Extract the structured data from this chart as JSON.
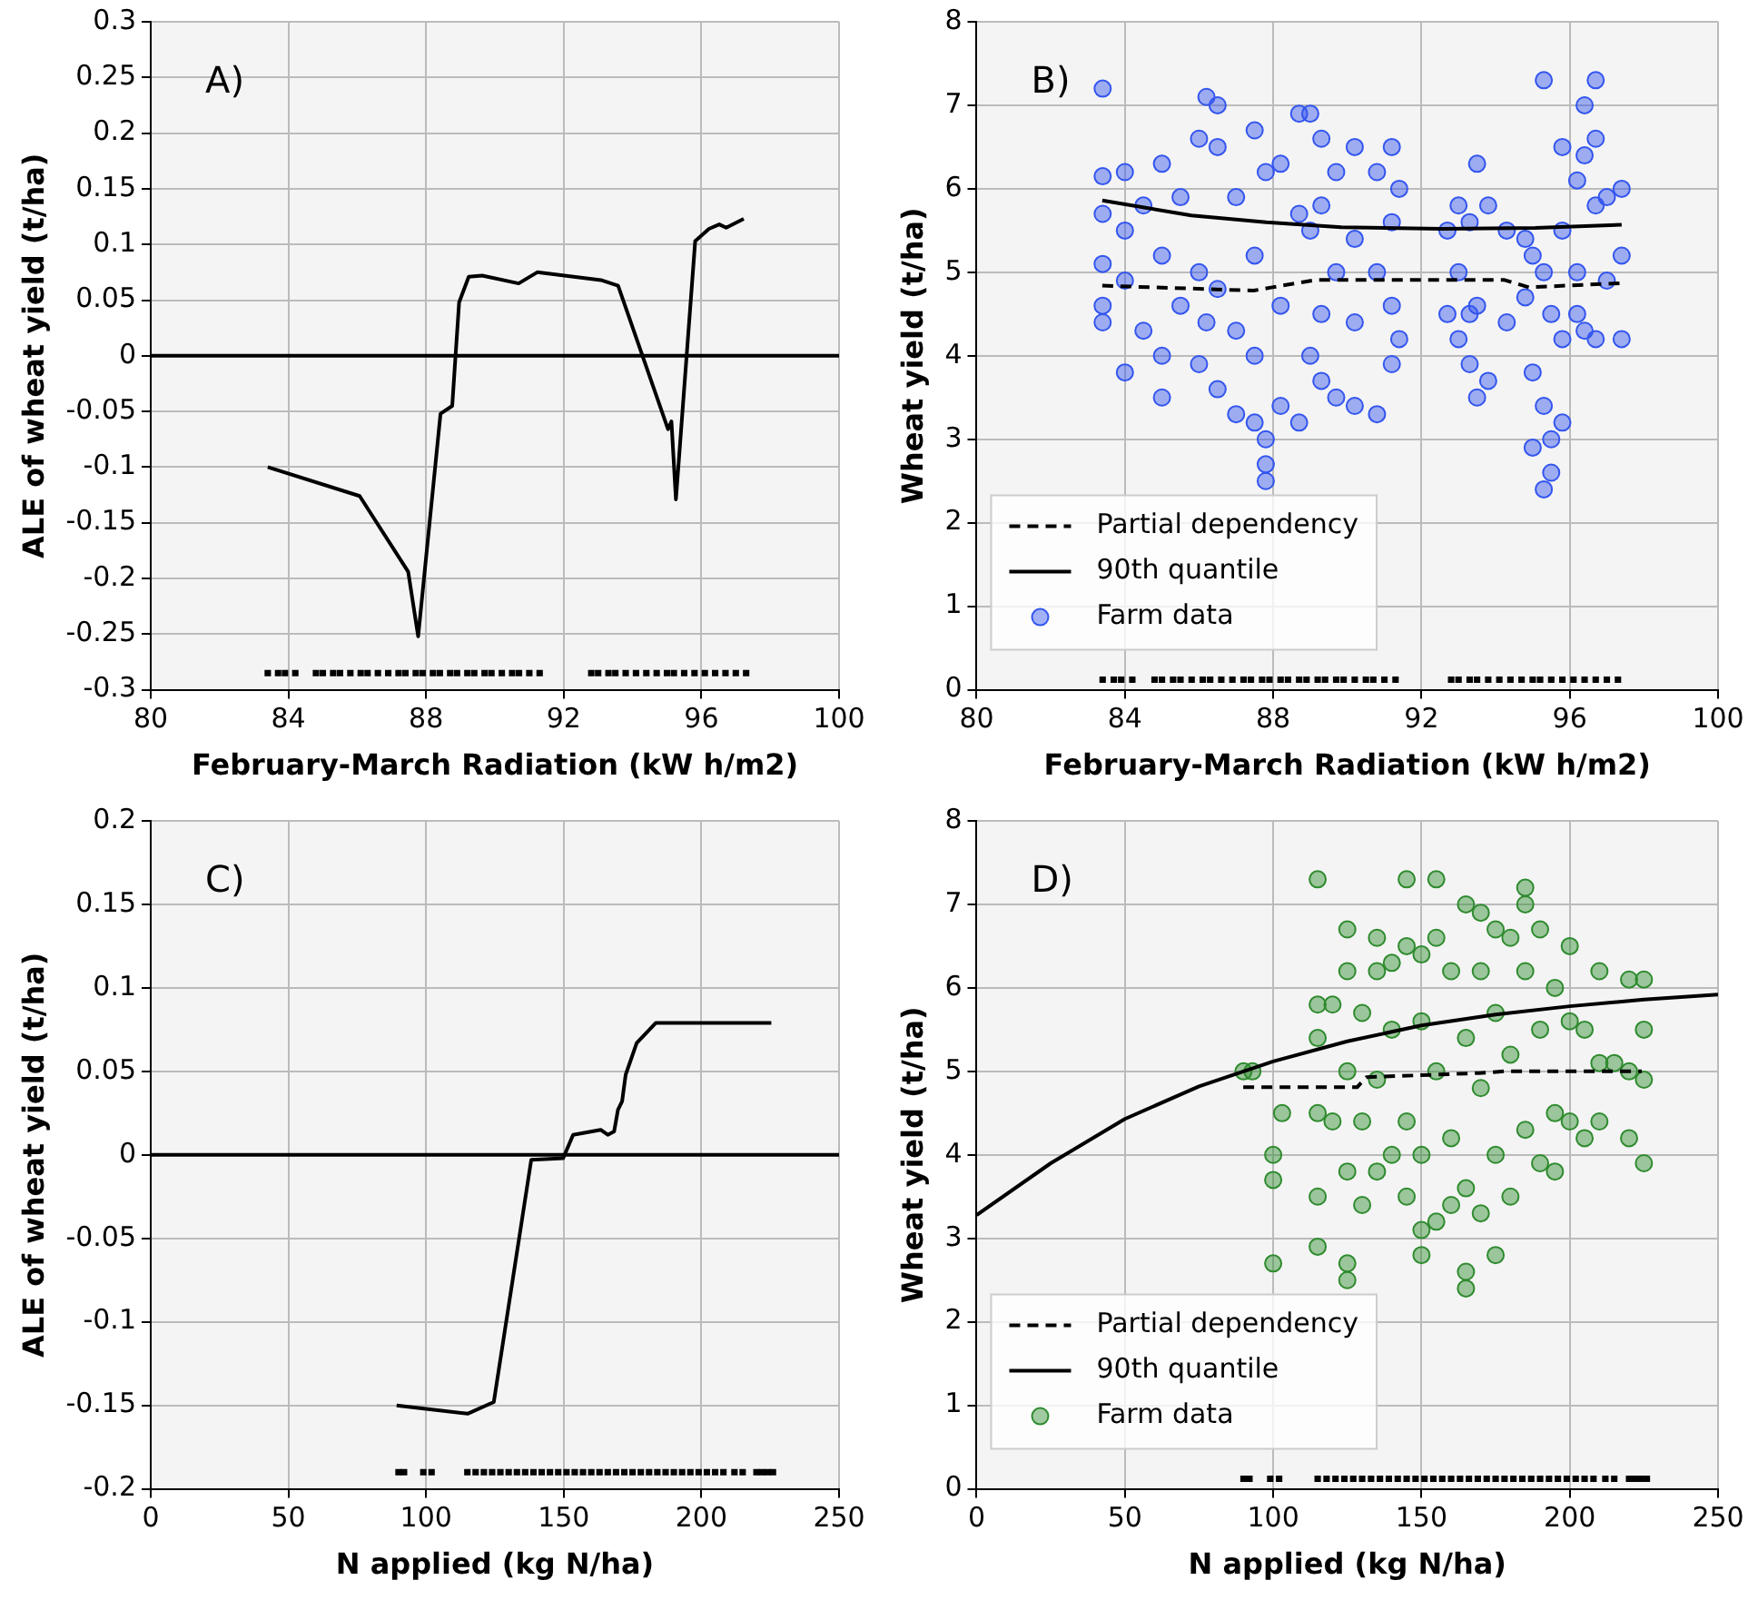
{
  "chart_data": [
    {
      "type": "line",
      "xlabel": "February-March Radiation (kW h/m2)",
      "ylabel": "ALE of wheat yield (t/ha)",
      "annotations": [
        "A)"
      ],
      "xlim": [
        80,
        100
      ],
      "xticks": [
        80,
        84,
        88,
        92,
        96,
        100
      ],
      "ylim": [
        -0.3,
        0.3
      ],
      "yticks": [
        -0.3,
        -0.25,
        -0.2,
        -0.15,
        -0.1,
        -0.05,
        0,
        0.05,
        0.1,
        0.15,
        0.2,
        0.25,
        0.3
      ],
      "grid": true,
      "legend": false,
      "ref_lines": [
        {
          "axis": "y",
          "value": 0,
          "color": "#000000"
        }
      ],
      "series": [
        {
          "color": "#000000",
          "line_style": "solid",
          "marker": "none",
          "x": [
            83.4,
            86.07,
            87.48,
            87.77,
            88.42,
            88.76,
            88.96,
            89.24,
            89.63,
            90.69,
            91.23,
            93.08,
            93.58,
            95.03,
            95.13,
            95.26,
            95.82,
            96.22,
            96.52,
            96.72,
            97.23
          ],
          "values": [
            -0.1,
            -0.126,
            -0.194,
            -0.252,
            -0.052,
            -0.045,
            0.048,
            0.071,
            0.072,
            0.065,
            0.075,
            0.068,
            0.063,
            -0.066,
            -0.059,
            -0.129,
            0.103,
            0.114,
            0.118,
            0.115,
            0.123
          ]
        },
        {
          "type": "scatter",
          "color": "#000000",
          "marker": "square",
          "x": [
            83.4,
            83.7,
            83.9,
            84.2,
            84.8,
            85.0,
            85.3,
            85.5,
            85.8,
            86.1,
            86.3,
            86.6,
            86.9,
            87.2,
            87.4,
            87.7,
            87.9,
            88.2,
            88.4,
            88.7,
            88.9,
            89.2,
            89.4,
            89.7,
            89.9,
            90.2,
            90.5,
            90.7,
            91.0,
            91.3,
            92.8,
            93.0,
            93.3,
            93.5,
            93.8,
            94.1,
            94.4,
            94.7,
            95.0,
            95.2,
            95.5,
            95.8,
            96.1,
            96.4,
            96.7,
            97.0,
            97.3
          ],
          "values": [
            -0.285,
            -0.285,
            -0.285,
            -0.285,
            -0.285,
            -0.285,
            -0.285,
            -0.285,
            -0.285,
            -0.285,
            -0.285,
            -0.285,
            -0.285,
            -0.285,
            -0.285,
            -0.285,
            -0.285,
            -0.285,
            -0.285,
            -0.285,
            -0.285,
            -0.285,
            -0.285,
            -0.285,
            -0.285,
            -0.285,
            -0.285,
            -0.285,
            -0.285,
            -0.285,
            -0.285,
            -0.285,
            -0.285,
            -0.285,
            -0.285,
            -0.285,
            -0.285,
            -0.285,
            -0.285,
            -0.285,
            -0.285,
            -0.285,
            -0.285,
            -0.285,
            -0.285,
            -0.285,
            -0.285
          ]
        }
      ]
    },
    {
      "type": "scatter",
      "xlabel": "February-March Radiation (kW h/m2)",
      "ylabel": "Wheat yield (t/ha)",
      "annotations": [
        "B)"
      ],
      "xlim": [
        80,
        100
      ],
      "xticks": [
        80,
        84,
        88,
        92,
        96,
        100
      ],
      "ylim": [
        0,
        8
      ],
      "yticks": [
        0,
        1,
        2,
        3,
        4,
        5,
        6,
        7,
        8
      ],
      "grid": true,
      "legend": "bottom left",
      "series": [
        {
          "type": "line",
          "name": "Partial dependency",
          "color": "#000000",
          "line_style": "dashed",
          "marker": "none",
          "x": [
            83.39,
            87.47,
            87.98,
            89.16,
            94.22,
            94.9,
            97.4
          ],
          "values": [
            4.84,
            4.78,
            4.82,
            4.91,
            4.91,
            4.82,
            4.87
          ]
        },
        {
          "type": "line",
          "name": "90th quantile",
          "color": "#000000",
          "line_style": "solid",
          "marker": "none",
          "x": [
            83.39,
            85.79,
            87.81,
            89.84,
            92.54,
            95.07,
            97.4
          ],
          "values": [
            5.86,
            5.68,
            5.6,
            5.54,
            5.52,
            5.53,
            5.57
          ]
        },
        {
          "name": "Farm data",
          "color": "#3355ee",
          "marker": "circle",
          "x": [
            83.4,
            83.4,
            83.4,
            83.4,
            83.4,
            83.4,
            84,
            84,
            84,
            84,
            84.5,
            84.5,
            85,
            85,
            85,
            85,
            85.5,
            85.5,
            86,
            86,
            86,
            86.2,
            86.2,
            86.5,
            86.5,
            86.5,
            86.5,
            87,
            87,
            87,
            87.5,
            87.5,
            87.5,
            87.5,
            87.8,
            87.8,
            87.8,
            87.8,
            88.2,
            88.2,
            88.2,
            88.7,
            88.7,
            88.7,
            89,
            89,
            89,
            89.3,
            89.3,
            89.3,
            89.3,
            89.7,
            89.7,
            89.7,
            90.2,
            90.2,
            90.2,
            90.2,
            90.8,
            90.8,
            90.8,
            91.2,
            91.2,
            91.2,
            91.2,
            91.4,
            91.4,
            92.7,
            92.7,
            93,
            93,
            93,
            93.3,
            93.3,
            93.3,
            93.5,
            93.5,
            93.5,
            93.8,
            93.8,
            94.3,
            94.3,
            94.8,
            94.8,
            95,
            95,
            95,
            95.3,
            95.3,
            95.3,
            95.3,
            95.5,
            95.5,
            95.5,
            95.8,
            95.8,
            95.8,
            95.8,
            96.2,
            96.2,
            96.2,
            96.4,
            96.4,
            96.4,
            96.7,
            96.7,
            96.7,
            96.7,
            97,
            97,
            97.4,
            97.4,
            97.4
          ],
          "values": [
            7.2,
            6.15,
            5.7,
            5.1,
            4.6,
            4.4,
            6.2,
            5.5,
            4.9,
            3.8,
            5.8,
            4.3,
            6.3,
            5.2,
            4.0,
            3.5,
            5.9,
            4.6,
            6.6,
            5.0,
            3.9,
            7.1,
            4.4,
            7.0,
            6.5,
            4.8,
            3.6,
            5.9,
            4.3,
            3.3,
            6.7,
            5.2,
            4.0,
            3.2,
            6.2,
            3.0,
            2.7,
            2.5,
            6.3,
            4.6,
            3.4,
            6.9,
            5.7,
            3.2,
            6.9,
            5.5,
            4.0,
            6.6,
            5.8,
            4.5,
            3.7,
            6.2,
            5.0,
            3.5,
            6.5,
            5.4,
            4.4,
            3.4,
            6.2,
            5.0,
            3.3,
            6.5,
            5.6,
            4.6,
            3.9,
            6.0,
            4.2,
            5.5,
            4.5,
            5.8,
            5.0,
            4.2,
            5.6,
            4.5,
            3.9,
            6.3,
            4.6,
            3.5,
            5.8,
            3.7,
            5.5,
            4.4,
            5.4,
            4.7,
            5.2,
            3.8,
            2.9,
            7.3,
            5.0,
            3.4,
            2.4,
            4.5,
            3.0,
            2.6,
            6.5,
            5.5,
            4.2,
            3.2,
            6.1,
            5.0,
            4.5,
            7.0,
            6.4,
            4.3,
            7.3,
            6.6,
            5.8,
            4.2,
            5.9,
            4.9,
            6.0,
            5.2,
            4.2
          ]
        },
        {
          "type": "scatter",
          "color": "#000000",
          "marker": "square",
          "x": [
            83.4,
            83.7,
            83.9,
            84.2,
            84.8,
            85.0,
            85.3,
            85.5,
            85.8,
            86.1,
            86.3,
            86.6,
            86.9,
            87.2,
            87.4,
            87.7,
            87.9,
            88.2,
            88.4,
            88.7,
            88.9,
            89.2,
            89.4,
            89.7,
            89.9,
            90.2,
            90.5,
            90.7,
            91.0,
            91.3,
            92.8,
            93.0,
            93.3,
            93.5,
            93.8,
            94.1,
            94.4,
            94.7,
            95.0,
            95.2,
            95.5,
            95.8,
            96.1,
            96.4,
            96.7,
            97.0,
            97.3
          ],
          "values": [
            0.12,
            0.12,
            0.12,
            0.12,
            0.12,
            0.12,
            0.12,
            0.12,
            0.12,
            0.12,
            0.12,
            0.12,
            0.12,
            0.12,
            0.12,
            0.12,
            0.12,
            0.12,
            0.12,
            0.12,
            0.12,
            0.12,
            0.12,
            0.12,
            0.12,
            0.12,
            0.12,
            0.12,
            0.12,
            0.12,
            0.12,
            0.12,
            0.12,
            0.12,
            0.12,
            0.12,
            0.12,
            0.12,
            0.12,
            0.12,
            0.12,
            0.12,
            0.12,
            0.12,
            0.12,
            0.12,
            0.12
          ]
        }
      ]
    },
    {
      "type": "line",
      "xlabel": "N applied (kg N/ha)",
      "ylabel": "ALE of wheat yield (t/ha)",
      "annotations": [
        "C)"
      ],
      "xlim": [
        0,
        250
      ],
      "xticks": [
        0,
        50,
        100,
        150,
        200,
        250
      ],
      "ylim": [
        -0.2,
        0.2
      ],
      "yticks": [
        -0.2,
        -0.15,
        -0.1,
        -0.05,
        0,
        0.05,
        0.1,
        0.15,
        0.2
      ],
      "grid": true,
      "legend": false,
      "ref_lines": [
        {
          "axis": "y",
          "value": 0,
          "color": "#000000"
        }
      ],
      "series": [
        {
          "color": "#000000",
          "line_style": "solid",
          "marker": "none",
          "x": [
            89.3,
            115.1,
            124.6,
            138.2,
            149.8,
            153.4,
            163.4,
            166,
            168.3,
            169.7,
            171.2,
            172.5,
            176.5,
            183.4,
            225.4
          ],
          "values": [
            -0.15,
            -0.155,
            -0.148,
            -0.003,
            -0.002,
            0.012,
            0.015,
            0.012,
            0.014,
            0.027,
            0.032,
            0.048,
            0.067,
            0.079,
            0.079
          ]
        },
        {
          "type": "scatter",
          "color": "#000000",
          "marker": "square",
          "x": [
            90,
            92,
            99,
            102,
            115,
            118,
            121,
            124,
            127,
            130,
            133,
            136,
            139,
            142,
            145,
            148,
            151,
            154,
            157,
            160,
            163,
            166,
            169,
            172,
            175,
            178,
            181,
            184,
            187,
            190,
            193,
            196,
            199,
            202,
            205,
            208,
            212,
            215,
            220,
            222,
            224,
            226
          ],
          "values": [
            -0.19,
            -0.19,
            -0.19,
            -0.19,
            -0.19,
            -0.19,
            -0.19,
            -0.19,
            -0.19,
            -0.19,
            -0.19,
            -0.19,
            -0.19,
            -0.19,
            -0.19,
            -0.19,
            -0.19,
            -0.19,
            -0.19,
            -0.19,
            -0.19,
            -0.19,
            -0.19,
            -0.19,
            -0.19,
            -0.19,
            -0.19,
            -0.19,
            -0.19,
            -0.19,
            -0.19,
            -0.19,
            -0.19,
            -0.19,
            -0.19,
            -0.19,
            -0.19,
            -0.19,
            -0.19,
            -0.19,
            -0.19,
            -0.19
          ]
        }
      ]
    },
    {
      "type": "scatter",
      "xlabel": "N applied (kg N/ha)",
      "ylabel": "Wheat yield (t/ha)",
      "annotations": [
        "D)"
      ],
      "xlim": [
        0,
        250
      ],
      "xticks": [
        0,
        50,
        100,
        150,
        200,
        250
      ],
      "ylim": [
        0,
        8
      ],
      "yticks": [
        0,
        1,
        2,
        3,
        4,
        5,
        6,
        7,
        8
      ],
      "grid": true,
      "legend": "bottom left",
      "series": [
        {
          "type": "line",
          "name": "Partial dependency",
          "color": "#000000",
          "line_style": "dashed",
          "marker": "none",
          "x": [
            89.9,
            128.3,
            131.4,
            169.4,
            177.8,
            224.3
          ],
          "values": [
            4.81,
            4.81,
            4.93,
            4.98,
            5.0,
            5.0
          ]
        },
        {
          "type": "line",
          "name": "90th quantile",
          "color": "#000000",
          "line_style": "solid",
          "marker": "none",
          "x": [
            0,
            25,
            50,
            75,
            100,
            125,
            150,
            175,
            200,
            225,
            250
          ],
          "values": [
            3.28,
            3.9,
            4.43,
            4.82,
            5.12,
            5.36,
            5.55,
            5.68,
            5.78,
            5.86,
            5.92
          ]
        },
        {
          "name": "Farm data",
          "color": "#2e8b2e",
          "marker": "circle",
          "x": [
            90,
            93,
            100,
            100,
            100,
            103,
            115,
            115,
            115,
            115,
            115,
            115,
            120,
            120,
            125,
            125,
            125,
            125,
            125,
            125,
            130,
            130,
            130,
            135,
            135,
            135,
            135,
            140,
            140,
            140,
            145,
            145,
            145,
            145,
            150,
            150,
            150,
            150,
            150,
            155,
            155,
            155,
            155,
            160,
            160,
            160,
            165,
            165,
            165,
            165,
            165,
            170,
            170,
            170,
            170,
            175,
            175,
            175,
            175,
            180,
            180,
            180,
            185,
            185,
            185,
            185,
            190,
            190,
            190,
            195,
            195,
            195,
            200,
            200,
            200,
            205,
            205,
            210,
            210,
            210,
            215,
            220,
            220,
            220,
            225,
            225,
            225,
            225
          ],
          "values": [
            5.0,
            5.0,
            4.0,
            3.7,
            2.7,
            4.5,
            7.3,
            5.8,
            5.4,
            4.5,
            3.5,
            2.9,
            5.8,
            4.4,
            6.7,
            6.2,
            5.0,
            3.8,
            2.7,
            2.5,
            5.7,
            4.4,
            3.4,
            6.6,
            6.2,
            4.9,
            3.8,
            6.3,
            5.5,
            4.0,
            7.3,
            6.5,
            4.4,
            3.5,
            6.4,
            5.6,
            4.0,
            3.1,
            2.8,
            7.3,
            6.6,
            5.0,
            3.2,
            6.2,
            4.2,
            3.4,
            7.0,
            5.4,
            3.6,
            2.6,
            2.4,
            6.9,
            6.2,
            4.8,
            3.3,
            6.7,
            5.7,
            4.0,
            2.8,
            6.6,
            5.2,
            3.5,
            7.2,
            7.0,
            6.2,
            4.3,
            6.7,
            5.5,
            3.9,
            6.0,
            4.5,
            3.8,
            6.5,
            5.6,
            4.4,
            5.5,
            4.2,
            6.2,
            5.1,
            4.4,
            5.1,
            6.1,
            5.0,
            4.2,
            6.1,
            5.5,
            4.9,
            3.9
          ]
        },
        {
          "type": "scatter",
          "color": "#000000",
          "marker": "square",
          "x": [
            90,
            92,
            99,
            102,
            115,
            118,
            121,
            124,
            127,
            130,
            133,
            136,
            139,
            142,
            145,
            148,
            151,
            154,
            157,
            160,
            163,
            166,
            169,
            172,
            175,
            178,
            181,
            184,
            187,
            190,
            193,
            196,
            199,
            202,
            205,
            208,
            212,
            215,
            220,
            222,
            224,
            226
          ],
          "values": [
            0.12,
            0.12,
            0.12,
            0.12,
            0.12,
            0.12,
            0.12,
            0.12,
            0.12,
            0.12,
            0.12,
            0.12,
            0.12,
            0.12,
            0.12,
            0.12,
            0.12,
            0.12,
            0.12,
            0.12,
            0.12,
            0.12,
            0.12,
            0.12,
            0.12,
            0.12,
            0.12,
            0.12,
            0.12,
            0.12,
            0.12,
            0.12,
            0.12,
            0.12,
            0.12,
            0.12,
            0.12,
            0.12,
            0.12,
            0.12,
            0.12,
            0.12
          ]
        }
      ]
    }
  ]
}
